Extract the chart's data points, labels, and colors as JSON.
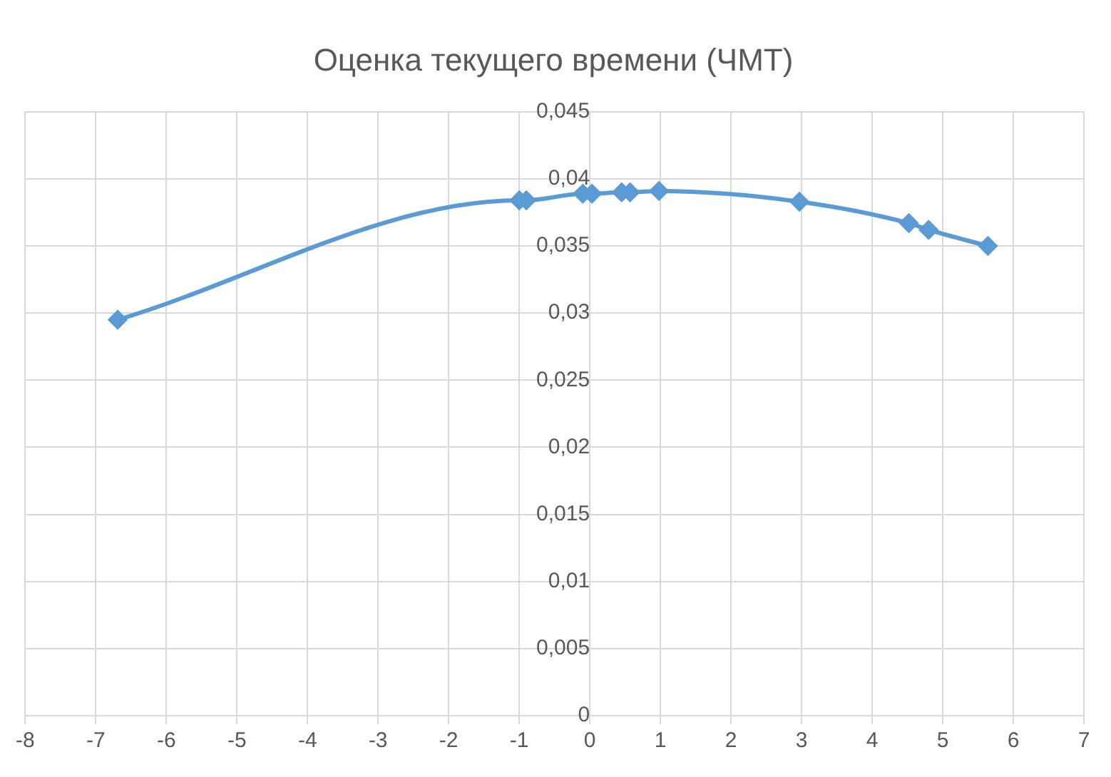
{
  "chart_data": {
    "type": "line",
    "title": "Оценка текущего времени (ЧМТ)",
    "series": [
      {
        "color": "#5b9bd5",
        "x": [
          -6.69,
          -1.0,
          -0.9,
          -0.1,
          0.03,
          0.45,
          0.57,
          0.98,
          2.97,
          4.52,
          4.8,
          5.64
        ],
        "values": [
          0.0295,
          0.0384,
          0.0384,
          0.0389,
          0.0389,
          0.039,
          0.039,
          0.0391,
          0.0383,
          0.0367,
          0.0362,
          0.035
        ]
      }
    ],
    "xlim": [
      -8,
      7
    ],
    "xticks": [
      -8,
      -7,
      -6,
      -5,
      -4,
      -3,
      -2,
      -1,
      0,
      1,
      2,
      3,
      4,
      5,
      6,
      7
    ],
    "ylim": [
      0,
      0.045
    ],
    "yticks": [
      {
        "value": 0,
        "label": "0"
      },
      {
        "value": 0.005,
        "label": "0,005"
      },
      {
        "value": 0.01,
        "label": "0,01"
      },
      {
        "value": 0.015,
        "label": "0,015"
      },
      {
        "value": 0.02,
        "label": "0,02"
      },
      {
        "value": 0.025,
        "label": "0,025"
      },
      {
        "value": 0.03,
        "label": "0,03"
      },
      {
        "value": 0.035,
        "label": "0,035"
      },
      {
        "value": 0.04,
        "label": "0,04"
      },
      {
        "value": 0.045,
        "label": "0,045"
      }
    ],
    "grid": true,
    "legend": false,
    "marker": "diamond",
    "line_style": "solid"
  }
}
